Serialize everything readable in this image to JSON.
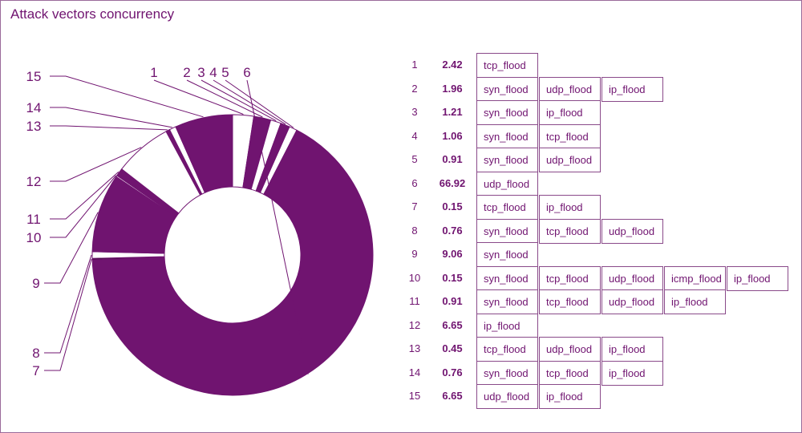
{
  "title": "Attack vectors concurrency",
  "colors": {
    "accent": "#701470",
    "border": "#8a4a8a",
    "background": "#ffffff"
  },
  "chart_data": {
    "type": "pie",
    "variant": "donut",
    "title": "Attack vectors concurrency",
    "slices": [
      {
        "label": "1",
        "value": 2.42,
        "vectors": [
          "tcp_flood"
        ]
      },
      {
        "label": "2",
        "value": 1.96,
        "vectors": [
          "syn_flood",
          "udp_flood",
          "ip_flood"
        ]
      },
      {
        "label": "3",
        "value": 1.21,
        "vectors": [
          "syn_flood",
          "ip_flood"
        ]
      },
      {
        "label": "4",
        "value": 1.06,
        "vectors": [
          "syn_flood",
          "tcp_flood"
        ]
      },
      {
        "label": "5",
        "value": 0.91,
        "vectors": [
          "syn_flood",
          "udp_flood"
        ]
      },
      {
        "label": "6",
        "value": 66.92,
        "vectors": [
          "udp_flood"
        ]
      },
      {
        "label": "7",
        "value": 0.15,
        "vectors": [
          "tcp_flood",
          "ip_flood"
        ]
      },
      {
        "label": "8",
        "value": 0.76,
        "vectors": [
          "syn_flood",
          "tcp_flood",
          "udp_flood"
        ]
      },
      {
        "label": "9",
        "value": 9.06,
        "vectors": [
          "syn_flood"
        ]
      },
      {
        "label": "10",
        "value": 0.15,
        "vectors": [
          "syn_flood",
          "tcp_flood",
          "udp_flood",
          "icmp_flood",
          "ip_flood"
        ]
      },
      {
        "label": "11",
        "value": 0.91,
        "vectors": [
          "syn_flood",
          "tcp_flood",
          "udp_flood",
          "ip_flood"
        ]
      },
      {
        "label": "12",
        "value": 6.65,
        "vectors": [
          "ip_flood"
        ]
      },
      {
        "label": "13",
        "value": 0.45,
        "vectors": [
          "tcp_flood",
          "udp_flood",
          "ip_flood"
        ]
      },
      {
        "label": "14",
        "value": 0.76,
        "vectors": [
          "syn_flood",
          "tcp_flood",
          "ip_flood"
        ]
      },
      {
        "label": "15",
        "value": 6.65,
        "vectors": [
          "udp_flood",
          "ip_flood"
        ]
      }
    ],
    "slice_fills": [
      "white",
      "purple",
      "white",
      "purple",
      "white",
      "purple",
      "dark",
      "white",
      "purple",
      "white",
      "purple",
      "white",
      "purple",
      "white",
      "purple"
    ]
  }
}
